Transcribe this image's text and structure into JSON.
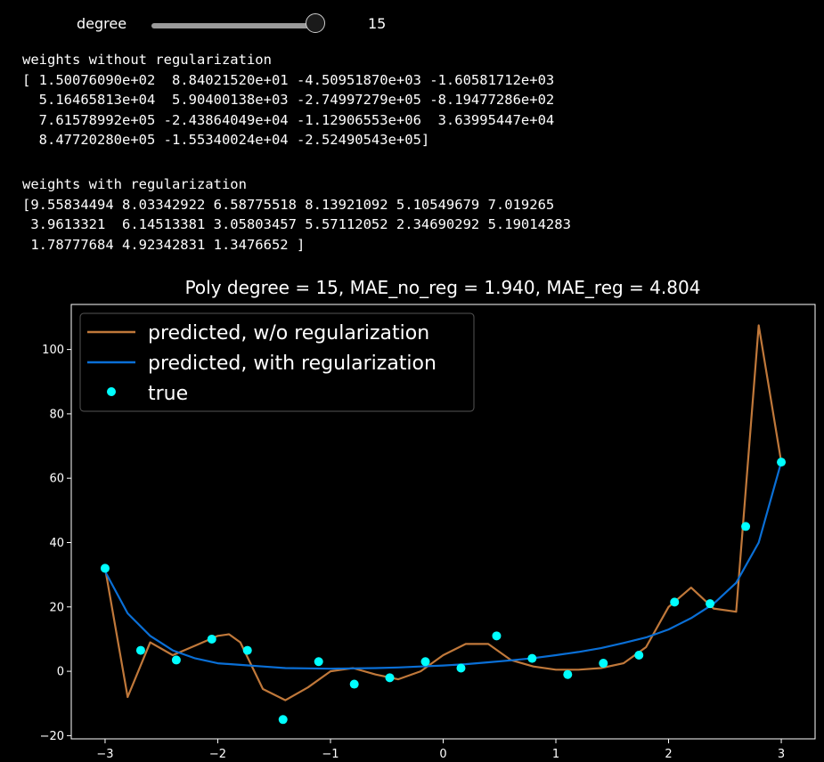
{
  "widget": {
    "label": "degree",
    "value": "15",
    "slider_fraction": 1.0,
    "track_color": "#9a9a9a"
  },
  "output": {
    "header_no_reg": "weights without regularization",
    "weights_no_reg_lines": [
      "[ 1.50076090e+02  8.84021520e+01 -4.50951870e+03 -1.60581712e+03",
      "  5.16465813e+04  5.90400138e+03 -2.74997279e+05 -8.19477286e+02",
      "  7.61578992e+05 -2.43864049e+04 -1.12906553e+06  3.63995447e+04",
      "  8.47720280e+05 -1.55340024e+04 -2.52490543e+05]"
    ],
    "header_reg": "weights with regularization",
    "weights_reg_lines": [
      "[9.55834494 8.03342922 6.58775518 8.13921092 5.10549679 7.019265",
      " 3.9613321  6.14513381 3.05803457 5.57112052 2.34690292 5.19014283",
      " 1.78777684 4.92342831 1.3476652 ]"
    ]
  },
  "chart_data": {
    "type": "line",
    "title": "Poly degree = 15, MAE_no_reg = 1.940, MAE_reg = 4.804",
    "xlabel": "",
    "ylabel": "",
    "xlim": [
      -3.3,
      3.3
    ],
    "ylim": [
      -21,
      114
    ],
    "xticks": [
      -3,
      -2,
      -1,
      0,
      1,
      2,
      3
    ],
    "xtick_labels": [
      "−3",
      "−2",
      "−1",
      "0",
      "1",
      "2",
      "3"
    ],
    "yticks": [
      -20,
      0,
      20,
      40,
      60,
      80,
      100
    ],
    "ytick_labels": [
      "−20",
      "0",
      "20",
      "40",
      "60",
      "80",
      "100"
    ],
    "grid": false,
    "legend_position": "top-left",
    "x": [
      -3.0,
      -2.684,
      -2.368,
      -2.053,
      -1.737,
      -1.421,
      -1.105,
      -0.789,
      -0.474,
      -0.158,
      0.158,
      0.474,
      0.789,
      1.105,
      1.421,
      1.737,
      2.053,
      2.368,
      2.684,
      3.0
    ],
    "series": [
      {
        "name": "predicted, w/o regularization",
        "kind": "line",
        "color": "#c0783a",
        "x": [
          -3.0,
          -2.8,
          -2.6,
          -2.4,
          -2.2,
          -2.0,
          -1.9,
          -1.8,
          -1.6,
          -1.4,
          -1.2,
          -1.0,
          -0.8,
          -0.6,
          -0.4,
          -0.2,
          0.0,
          0.2,
          0.4,
          0.6,
          0.8,
          1.0,
          1.2,
          1.4,
          1.6,
          1.8,
          2.0,
          2.2,
          2.4,
          2.6,
          2.8,
          3.0
        ],
        "values": [
          32,
          -8,
          9,
          5,
          8,
          11,
          11.5,
          9,
          -5.5,
          -9,
          -5,
          0,
          1,
          -1,
          -2.5,
          0,
          5,
          8.5,
          8.5,
          3.5,
          1.5,
          0.5,
          0.5,
          1,
          2.5,
          7.5,
          20,
          26,
          19.5,
          18.5,
          107.5,
          65
        ]
      },
      {
        "name": "predicted, with regularization",
        "kind": "line",
        "color": "#0a6fd6",
        "x": [
          -3.0,
          -2.8,
          -2.6,
          -2.4,
          -2.2,
          -2.0,
          -1.8,
          -1.6,
          -1.4,
          -1.2,
          -1.0,
          -0.8,
          -0.6,
          -0.4,
          -0.2,
          0.0,
          0.2,
          0.4,
          0.6,
          0.8,
          1.0,
          1.2,
          1.4,
          1.6,
          1.8,
          2.0,
          2.2,
          2.4,
          2.6,
          2.8,
          3.0
        ],
        "values": [
          31,
          18,
          11,
          6.5,
          4,
          2.5,
          2,
          1.5,
          1,
          0.9,
          0.8,
          0.9,
          1,
          1.2,
          1.5,
          1.8,
          2.2,
          2.8,
          3.4,
          4.1,
          5,
          6,
          7.2,
          8.8,
          10.5,
          13,
          16.5,
          21,
          27.5,
          40,
          65
        ]
      },
      {
        "name": "true",
        "kind": "scatter",
        "color": "#00ffff",
        "values": [
          32,
          6.5,
          3.5,
          10,
          6.5,
          -15,
          3,
          -4,
          -2,
          3,
          1,
          11,
          4,
          -1,
          2.5,
          5,
          21.5,
          21,
          45,
          65
        ]
      }
    ]
  }
}
